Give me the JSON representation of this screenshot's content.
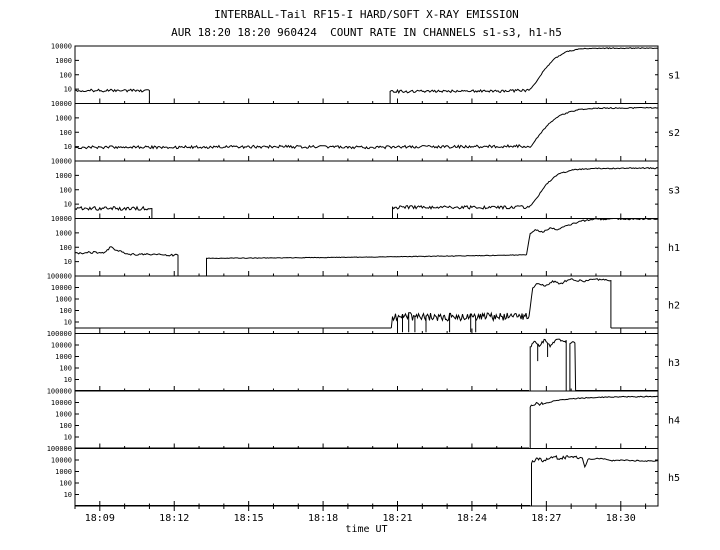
{
  "colors": {
    "line": "#000000",
    "background": "#ffffff",
    "axis": "#000000"
  },
  "chart_data": {
    "type": "line",
    "title": "INTERBALL-Tail RF15-I HARD/SOFT X-RAY EMISSION",
    "subtitle": "AUR 18:20 18:20 960424  COUNT RATE IN CHANNELS s1-s3, h1-h5",
    "xlabel": "time UT",
    "x_range": [
      8.0,
      31.5
    ],
    "x_unit": "minutes after 18:00 UT",
    "grid": false,
    "legend": "right-side panel labels",
    "xticks": [
      {
        "t": 9,
        "label": "18:09"
      },
      {
        "t": 12,
        "label": "18:12"
      },
      {
        "t": 15,
        "label": "18:15"
      },
      {
        "t": 18,
        "label": "18:18"
      },
      {
        "t": 21,
        "label": "18:21"
      },
      {
        "t": 24,
        "label": "18:24"
      },
      {
        "t": 27,
        "label": "18:27"
      },
      {
        "t": 30,
        "label": "18:30"
      }
    ],
    "minor_tick_minutes": 1,
    "yscale": "log",
    "panels": [
      {
        "label": "s1",
        "decades": 4,
        "ymin": 1,
        "ymax": 10000,
        "segments": [
          {
            "noise": 0.1,
            "points": [
              [
                8.0,
                8
              ],
              [
                11.0,
                8
              ],
              [
                11.0,
                1
              ]
            ]
          },
          {
            "noise": 0.1,
            "points": [
              [
                20.7,
                1
              ],
              [
                20.7,
                7
              ],
              [
                23.5,
                7
              ],
              [
                26.3,
                8
              ]
            ]
          },
          {
            "noise": 0.03,
            "points": [
              [
                26.3,
                8
              ],
              [
                26.55,
                25
              ],
              [
                26.9,
                200
              ],
              [
                27.3,
                1200
              ],
              [
                27.8,
                4000
              ],
              [
                28.4,
                6500
              ],
              [
                29.0,
                7000
              ],
              [
                31.5,
                7000
              ]
            ]
          }
        ]
      },
      {
        "label": "s2",
        "decades": 4,
        "ymin": 1,
        "ymax": 10000,
        "segments": [
          {
            "noise": 0.1,
            "points": [
              [
                8.0,
                9
              ],
              [
                12.0,
                9
              ],
              [
                16.0,
                10
              ],
              [
                20.0,
                9
              ],
              [
                24.0,
                10
              ],
              [
                26.4,
                11
              ]
            ]
          },
          {
            "noise": 0.04,
            "points": [
              [
                26.4,
                11
              ],
              [
                26.7,
                60
              ],
              [
                27.1,
                400
              ],
              [
                27.6,
                1600
              ],
              [
                28.2,
                3500
              ],
              [
                29.0,
                4800
              ],
              [
                31.5,
                5000
              ]
            ]
          }
        ]
      },
      {
        "label": "s3",
        "decades": 4,
        "ymin": 1,
        "ymax": 10000,
        "segments": [
          {
            "noise": 0.12,
            "points": [
              [
                8.0,
                5
              ],
              [
                11.1,
                5
              ],
              [
                11.1,
                1
              ]
            ]
          },
          {
            "noise": 0.12,
            "points": [
              [
                20.8,
                1
              ],
              [
                20.8,
                6
              ],
              [
                26.3,
                6
              ]
            ]
          },
          {
            "noise": 0.04,
            "points": [
              [
                26.3,
                6
              ],
              [
                26.6,
                25
              ],
              [
                27.0,
                250
              ],
              [
                27.5,
                1300
              ],
              [
                28.1,
                2400
              ],
              [
                28.8,
                3000
              ],
              [
                31.5,
                3200
              ]
            ]
          }
        ]
      },
      {
        "label": "h1",
        "decades": 4,
        "ymin": 1,
        "ymax": 10000,
        "segments": [
          {
            "noise": 0.07,
            "points": [
              [
                8.0,
                40
              ],
              [
                9.2,
                45
              ],
              [
                9.45,
                110
              ],
              [
                9.7,
                60
              ],
              [
                10.2,
                33
              ],
              [
                12.15,
                28
              ],
              [
                12.15,
                1
              ]
            ]
          },
          {
            "noise": 0.02,
            "points": [
              [
                13.3,
                1
              ],
              [
                13.3,
                17
              ],
              [
                16.0,
                18
              ],
              [
                19.0,
                20
              ],
              [
                22.0,
                23
              ],
              [
                25.0,
                27
              ],
              [
                26.2,
                30
              ]
            ]
          },
          {
            "noise": 0.05,
            "points": [
              [
                26.2,
                30
              ],
              [
                26.35,
                900
              ],
              [
                26.55,
                1700
              ],
              [
                26.85,
                1100
              ],
              [
                27.15,
                2300
              ],
              [
                27.45,
                1600
              ],
              [
                27.85,
                3300
              ],
              [
                28.4,
                6500
              ],
              [
                28.9,
                8800
              ],
              [
                29.5,
                9200
              ],
              [
                31.5,
                9200
              ]
            ]
          }
        ]
      },
      {
        "label": "h2",
        "decades": 5,
        "ymin": 1,
        "ymax": 100000,
        "segments": [
          {
            "noise": 0.0,
            "points": [
              [
                8.0,
                3
              ],
              [
                20.75,
                3
              ]
            ]
          },
          {
            "noise": 0.35,
            "step": 0.04,
            "points": [
              [
                20.75,
                3
              ],
              [
                20.8,
                30
              ],
              [
                23.5,
                25
              ],
              [
                26.3,
                30
              ]
            ],
            "spikes": [
              {
                "t": 21.0,
                "v": 1.3
              },
              {
                "t": 21.2,
                "v": 1.3
              },
              {
                "t": 21.45,
                "v": 1.3
              },
              {
                "t": 21.7,
                "v": 1.3
              },
              {
                "t": 22.15,
                "v": 1.3
              },
              {
                "t": 23.1,
                "v": 1.3
              },
              {
                "t": 23.95,
                "v": 1.3
              },
              {
                "t": 24.15,
                "v": 1.3
              }
            ]
          },
          {
            "noise": 0.1,
            "points": [
              [
                26.3,
                30
              ],
              [
                26.45,
                9000
              ],
              [
                26.65,
                22000
              ],
              [
                26.95,
                13000
              ],
              [
                27.25,
                38000
              ],
              [
                27.55,
                22000
              ],
              [
                27.95,
                48000
              ],
              [
                28.45,
                36000
              ],
              [
                28.95,
                52000
              ],
              [
                29.35,
                45000
              ],
              [
                29.6,
                40000
              ],
              [
                29.6,
                3
              ]
            ]
          },
          {
            "noise": 0.0,
            "points": [
              [
                29.6,
                3
              ],
              [
                31.5,
                3
              ]
            ]
          }
        ]
      },
      {
        "label": "h3",
        "decades": 5,
        "ymin": 1,
        "ymax": 100000,
        "segments": [
          {
            "noise": 0.0,
            "points": [
              [
                8.0,
                1.1
              ],
              [
                26.3,
                1.1
              ]
            ]
          },
          {
            "noise": 0.15,
            "step": 0.04,
            "points": [
              [
                26.35,
                1.1
              ],
              [
                26.35,
                7000
              ],
              [
                26.55,
                20000
              ],
              [
                26.75,
                9000
              ],
              [
                26.95,
                30000
              ],
              [
                27.15,
                7000
              ],
              [
                27.35,
                24000
              ],
              [
                27.55,
                30000
              ],
              [
                27.7,
                20000
              ],
              [
                27.8,
                26000
              ],
              [
                27.8,
                1.1
              ]
            ],
            "spikes": [
              {
                "t": 26.65,
                "v": 400
              },
              {
                "t": 27.05,
                "v": 900
              }
            ]
          },
          {
            "noise": 0.08,
            "points": [
              [
                27.95,
                1.1
              ],
              [
                27.95,
                13000
              ],
              [
                28.05,
                19000
              ],
              [
                28.15,
                15000
              ],
              [
                28.18,
                1.1
              ]
            ]
          },
          {
            "noise": 0.0,
            "points": [
              [
                28.18,
                1.1
              ],
              [
                31.5,
                1.1
              ]
            ]
          }
        ]
      },
      {
        "label": "h4",
        "decades": 5,
        "ymin": 1,
        "ymax": 100000,
        "segments": [
          {
            "noise": 0.0,
            "points": [
              [
                8.0,
                1.1
              ],
              [
                26.3,
                1.1
              ]
            ]
          },
          {
            "noise": 0.2,
            "step": 0.04,
            "points": [
              [
                26.35,
                1.1
              ],
              [
                26.35,
                4000
              ],
              [
                26.6,
                10000
              ],
              [
                26.9,
                8000
              ]
            ]
          },
          {
            "noise": 0.04,
            "points": [
              [
                26.9,
                8000
              ],
              [
                27.4,
                15000
              ],
              [
                28.0,
                21000
              ],
              [
                28.8,
                27000
              ],
              [
                29.8,
                31000
              ],
              [
                31.5,
                33000
              ]
            ]
          }
        ]
      },
      {
        "label": "h5",
        "decades": 5,
        "ymin": 1,
        "ymax": 100000,
        "segments": [
          {
            "noise": 0.0,
            "points": [
              [
                8.0,
                1.1
              ],
              [
                26.35,
                1.1
              ]
            ]
          },
          {
            "noise": 0.15,
            "step": 0.04,
            "points": [
              [
                26.4,
                1.1
              ],
              [
                26.4,
                5000
              ],
              [
                26.6,
                15000
              ],
              [
                26.9,
                9000
              ],
              [
                27.2,
                19000
              ],
              [
                27.6,
                14000
              ],
              [
                28.0,
                20000
              ],
              [
                28.45,
                16000
              ]
            ]
          },
          {
            "noise": 0.05,
            "points": [
              [
                28.45,
                16000
              ],
              [
                28.55,
                2500
              ],
              [
                28.68,
                12000
              ]
            ]
          },
          {
            "noise": 0.05,
            "points": [
              [
                28.68,
                12000
              ],
              [
                29.2,
                14000
              ],
              [
                29.6,
                9000
              ],
              [
                30.2,
                10000
              ],
              [
                30.9,
                8000
              ],
              [
                31.5,
                8500
              ]
            ]
          }
        ]
      }
    ]
  }
}
